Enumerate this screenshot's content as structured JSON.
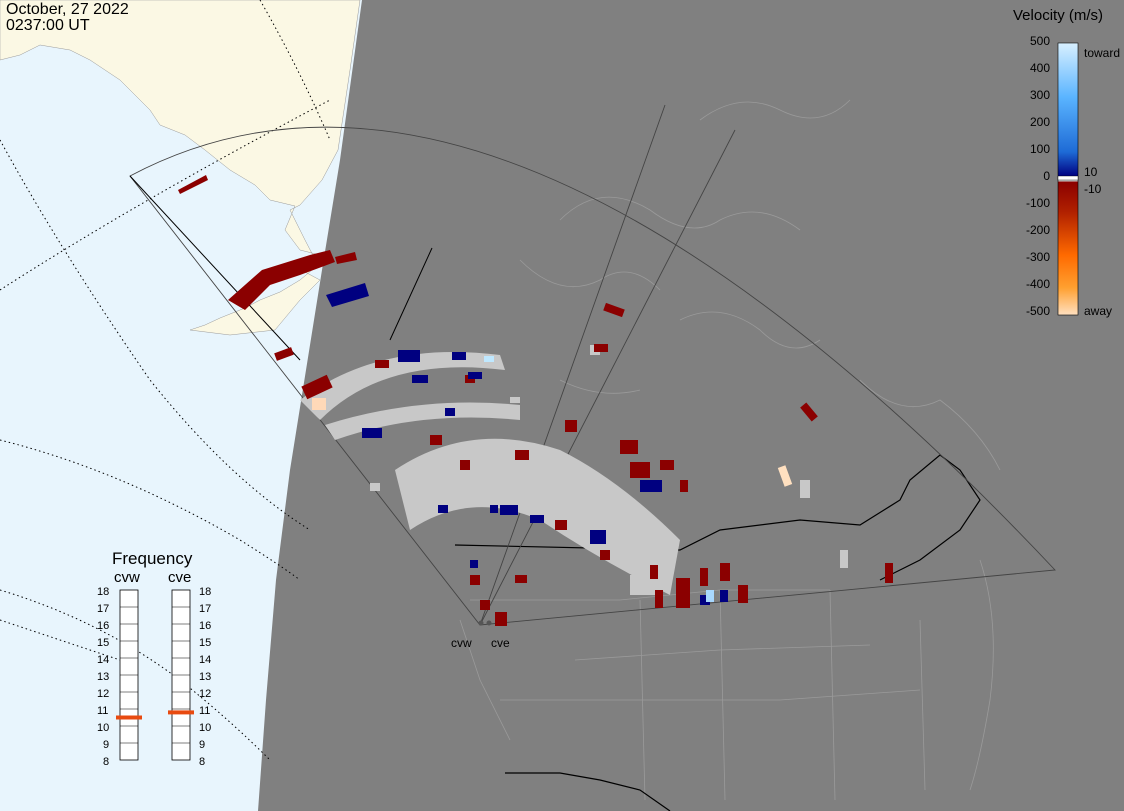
{
  "header": {
    "date": "October, 27 2022",
    "time": "0237:00 UT"
  },
  "colorbar": {
    "title": "Velocity (m/s)",
    "ticks": [
      "500",
      "400",
      "300",
      "200",
      "100",
      "0",
      "-100",
      "-200",
      "-300",
      "-400",
      "-500"
    ],
    "inner_pos_label": "10",
    "inner_neg_label": "-10",
    "top_label": "toward",
    "bottom_label": "away",
    "colors": {
      "toward_high": "#d8f0ff",
      "toward_mid": "#1e90ff",
      "toward_low": "#000080",
      "ground_scatter": "#c8c8c8",
      "away_low": "#8b0000",
      "away_mid": "#ff8c00",
      "away_high": "#ffe0c0"
    }
  },
  "frequency": {
    "title": "Frequency",
    "radars": [
      {
        "name": "cvw",
        "selected_mhz": 10.5
      },
      {
        "name": "cve",
        "selected_mhz": 10.8
      }
    ],
    "ticks": [
      "18",
      "17",
      "16",
      "15",
      "14",
      "13",
      "12",
      "11",
      "10",
      "9",
      "8"
    ]
  },
  "sites": [
    "cvw",
    "cve"
  ],
  "map_colors": {
    "ocean_day": "#e8f5fd",
    "land_day": "#fbf8e4",
    "night": "#808080",
    "marker": "#e84a10"
  }
}
